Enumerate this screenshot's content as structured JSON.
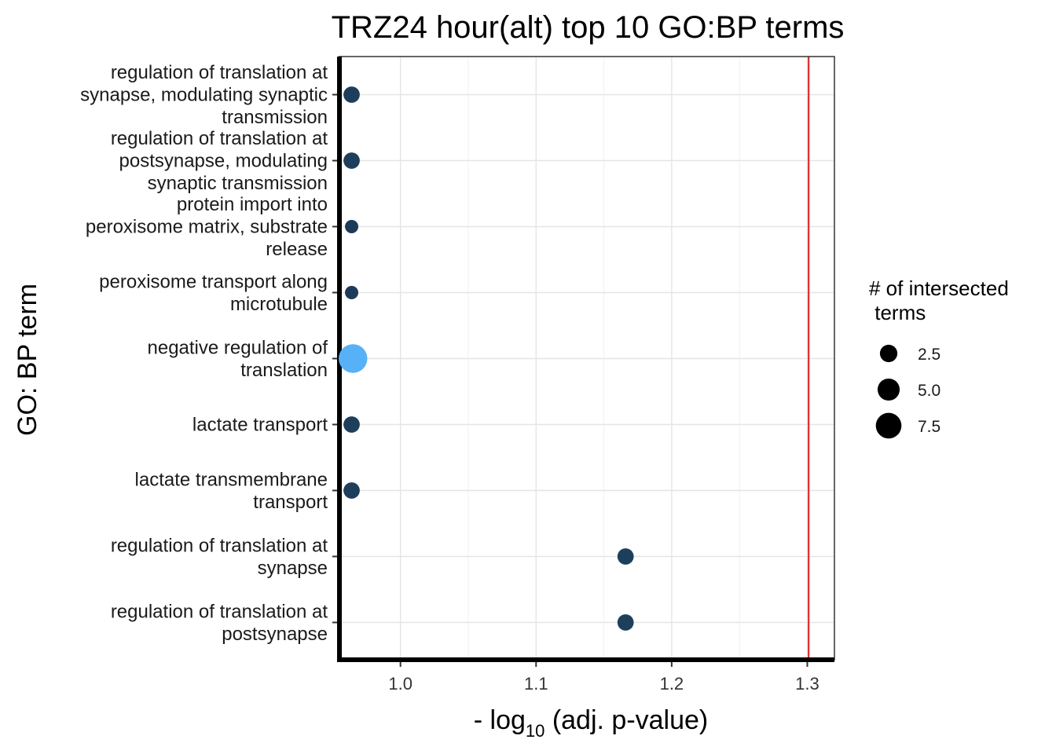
{
  "chart_data": {
    "type": "scatter",
    "title": "TRZ24 hour(alt) top 10 GO:BP terms",
    "xlabel": {
      "prefix": "- log",
      "subscript": "10",
      "suffix": " (adj. p-value)"
    },
    "ylabel": "GO: BP term",
    "xlim": [
      0.955,
      1.32
    ],
    "xticks": [
      "1.0",
      "1.1",
      "1.2",
      "1.3"
    ],
    "xtick_values": [
      1.0,
      1.1,
      1.2,
      1.3
    ],
    "threshold_line": {
      "x": 1.301,
      "color": "#e41a1c"
    },
    "grid": true,
    "legend_position": "right",
    "legend": {
      "title": [
        "# of intersected",
        " terms"
      ],
      "entries": [
        {
          "label": "2.5",
          "value": 2.5
        },
        {
          "label": "5.0",
          "value": 5.0
        },
        {
          "label": "7.5",
          "value": 7.5
        }
      ]
    },
    "points": [
      {
        "term": [
          "regulation of translation at",
          "synapse, modulating synaptic",
          "transmission"
        ],
        "x": 0.964,
        "size": 2,
        "color": "#1e3f5c"
      },
      {
        "term": [
          "regulation of translation at",
          "postsynapse, modulating",
          "synaptic transmission"
        ],
        "x": 0.964,
        "size": 2,
        "color": "#1e3f5c"
      },
      {
        "term": [
          "protein import into",
          "peroxisome matrix, substrate",
          "release"
        ],
        "x": 0.964,
        "size": 1,
        "color": "#1c3b58"
      },
      {
        "term": [
          "peroxisome transport along",
          "microtubule"
        ],
        "x": 0.964,
        "size": 1,
        "color": "#1c3b58"
      },
      {
        "term": [
          "negative regulation of",
          "translation"
        ],
        "x": 0.965,
        "size": 10,
        "color": "#56b1f7"
      },
      {
        "term": [
          "lactate transport"
        ],
        "x": 0.964,
        "size": 2,
        "color": "#1e3f5c"
      },
      {
        "term": [
          "lactate transmembrane",
          "transport"
        ],
        "x": 0.964,
        "size": 2,
        "color": "#1e3f5c"
      },
      {
        "term": [
          "regulation of translation at",
          "synapse"
        ],
        "x": 1.166,
        "size": 2,
        "color": "#1e3f5c"
      },
      {
        "term": [
          "regulation of translation at",
          "postsynapse"
        ],
        "x": 1.166,
        "size": 2,
        "color": "#1e3f5c"
      }
    ]
  }
}
